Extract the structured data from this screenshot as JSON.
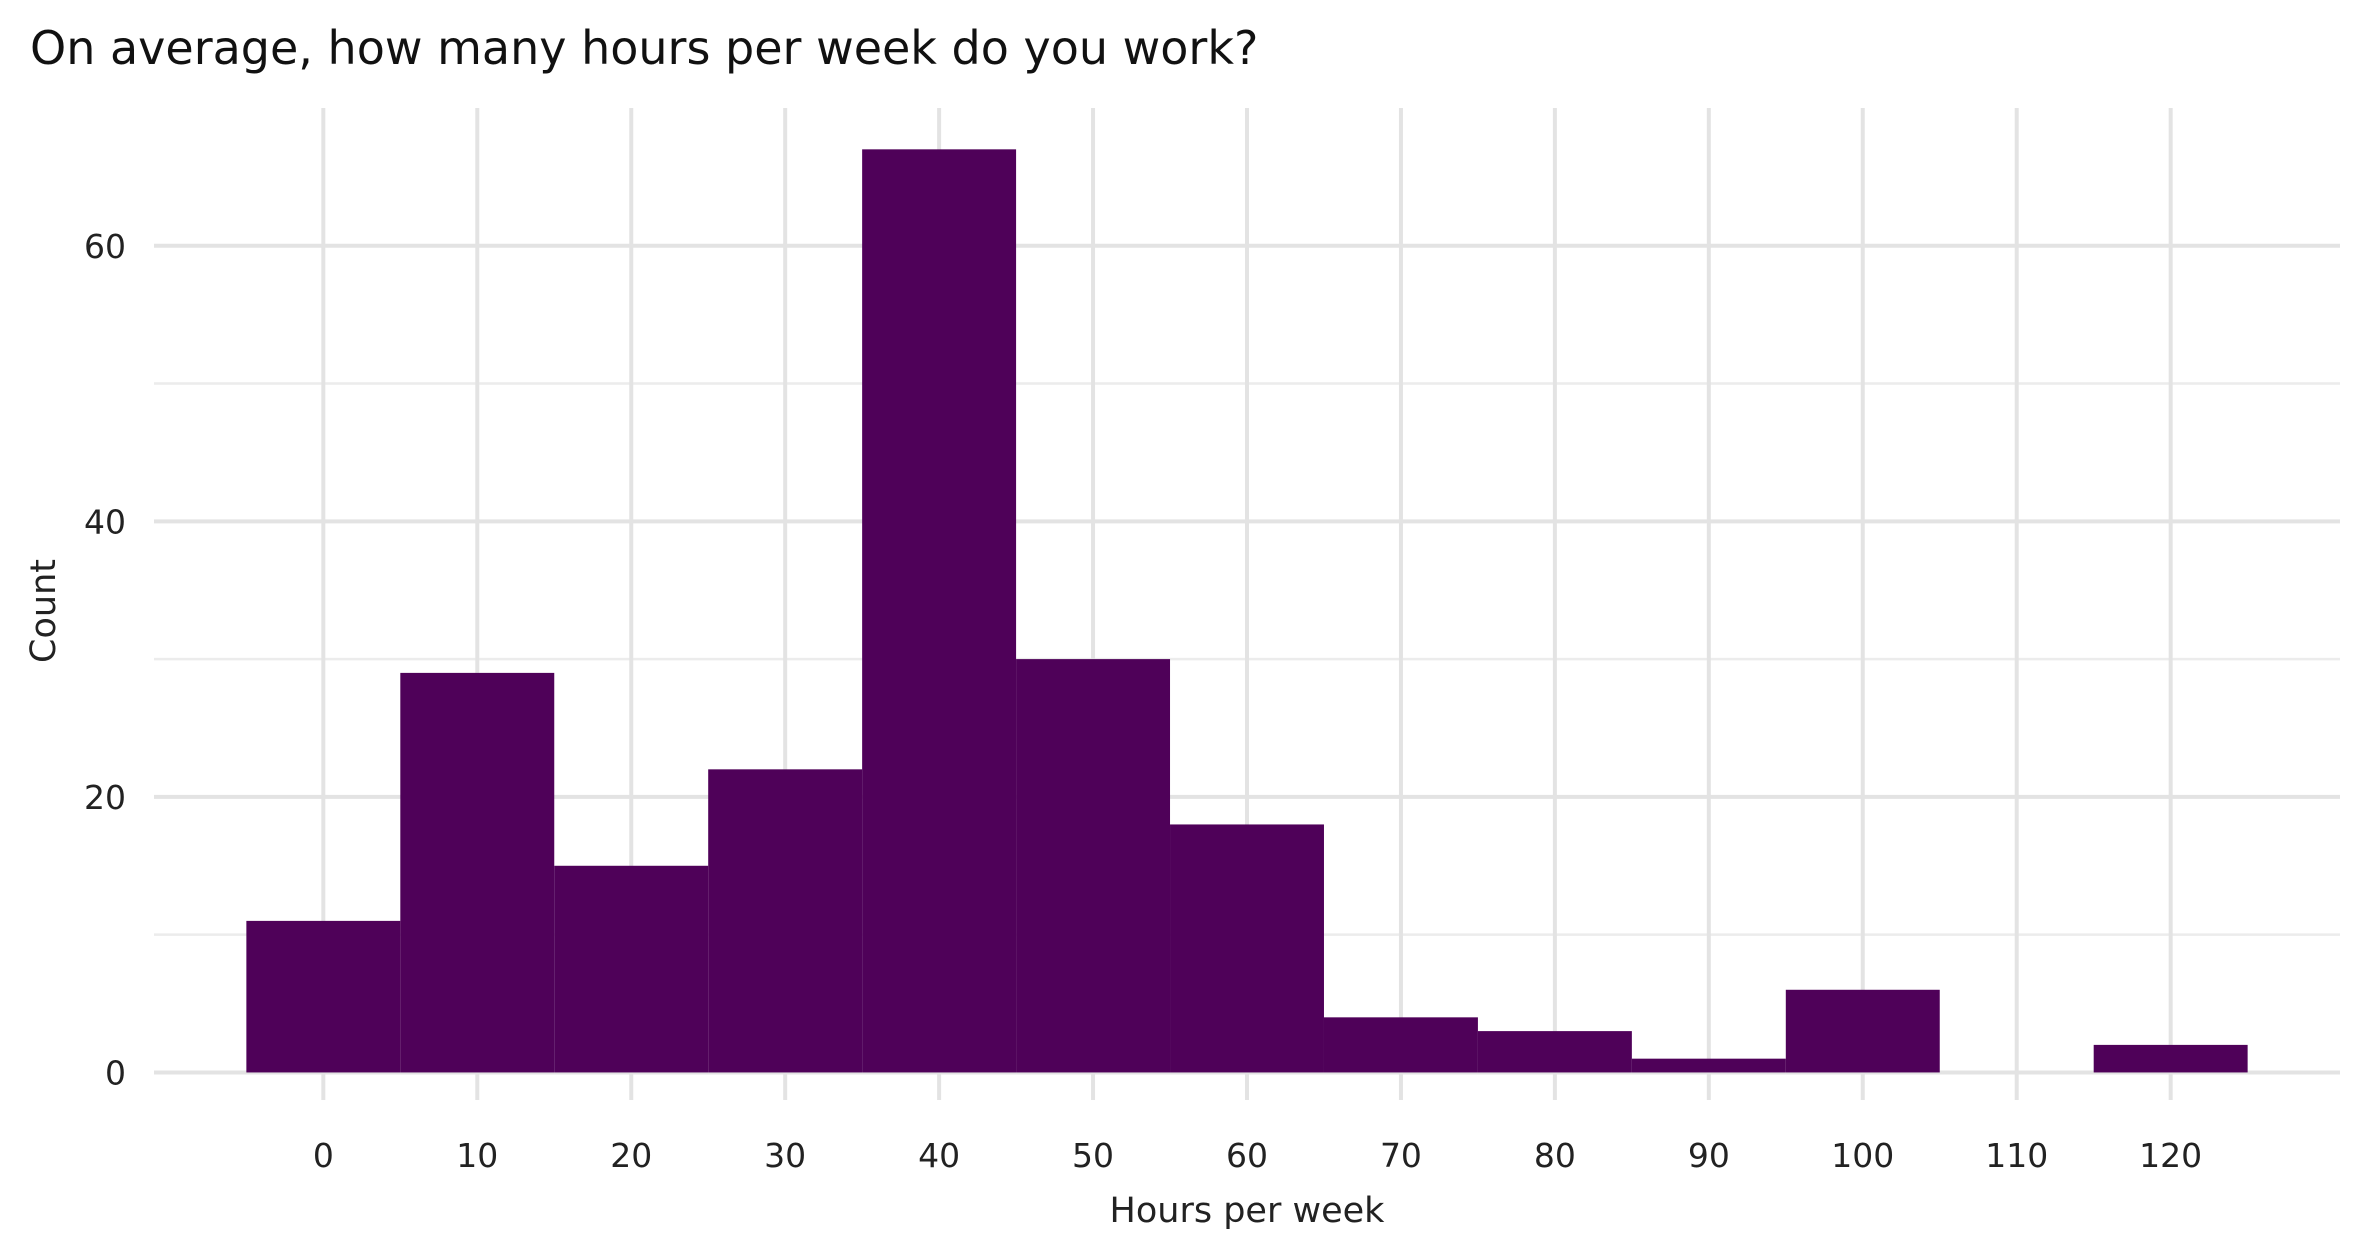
{
  "chart_data": {
    "type": "bar",
    "title": "On average, how many hours per week do you work?",
    "xlabel": "Hours per week",
    "ylabel": "Count",
    "bin_width": 10,
    "bins": [
      {
        "center": 0,
        "count": 11
      },
      {
        "center": 10,
        "count": 29
      },
      {
        "center": 20,
        "count": 15
      },
      {
        "center": 30,
        "count": 22
      },
      {
        "center": 40,
        "count": 67
      },
      {
        "center": 50,
        "count": 30
      },
      {
        "center": 60,
        "count": 18
      },
      {
        "center": 70,
        "count": 4
      },
      {
        "center": 80,
        "count": 3
      },
      {
        "center": 90,
        "count": 1
      },
      {
        "center": 100,
        "count": 6
      },
      {
        "center": 110,
        "count": 0
      },
      {
        "center": 120,
        "count": 2
      }
    ],
    "xlim": [
      -11,
      131
    ],
    "ylim": [
      -2,
      70
    ],
    "xticks": [
      "0",
      "10",
      "20",
      "30",
      "40",
      "50",
      "60",
      "70",
      "80",
      "90",
      "100",
      "110",
      "120"
    ],
    "yticks": [
      "0",
      "20",
      "40",
      "60"
    ],
    "grid": true,
    "bar_color": "#4f0159"
  }
}
